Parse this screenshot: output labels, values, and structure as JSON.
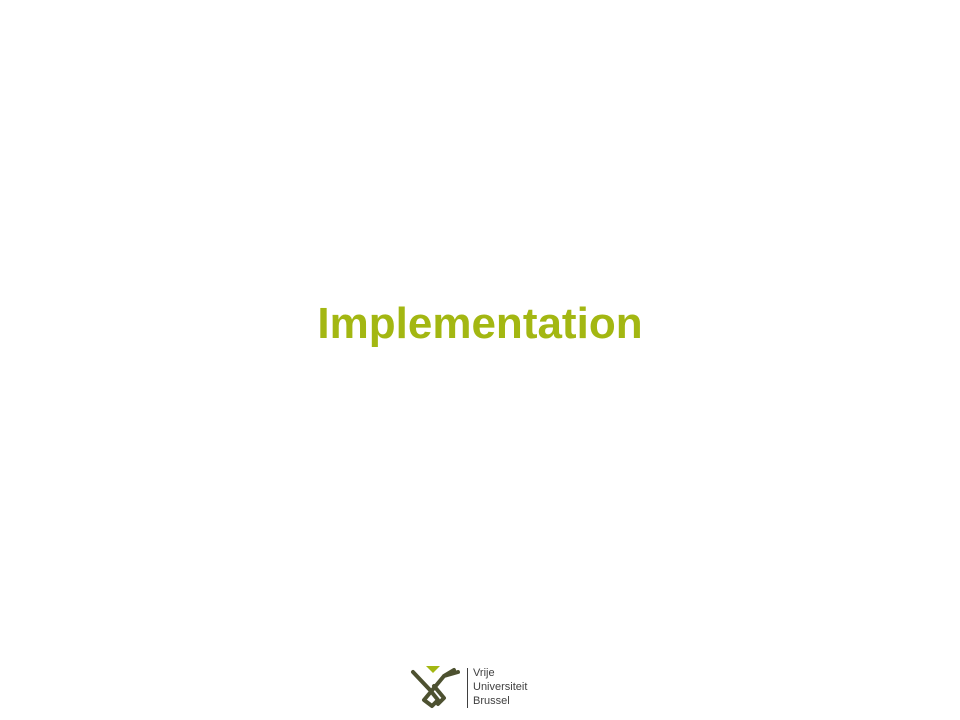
{
  "slide": {
    "title": "Implementation",
    "title_color": "#a3b712"
  },
  "logo": {
    "icon": "vub-logo-icon",
    "line1": "Vrije",
    "line2": "Universiteit",
    "line3": "Brussel",
    "mark_color": "#4d5130",
    "accent_color": "#a3b712",
    "text_color": "#3f3f3f"
  }
}
